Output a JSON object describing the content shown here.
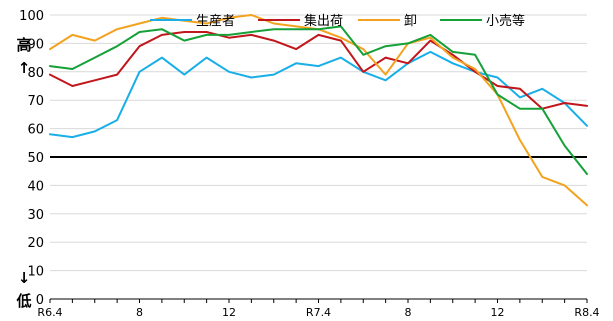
{
  "chart_data": {
    "type": "line",
    "title": "",
    "xlabel": "",
    "ylabel_top": "高",
    "ylabel_top_arrow": "↑",
    "ylabel_bottom_arrow": "↓",
    "ylabel_bottom": "低",
    "ylim": [
      0,
      100
    ],
    "yticks": [
      0,
      10,
      20,
      30,
      40,
      50,
      60,
      70,
      80,
      90,
      100
    ],
    "reference_line": 50,
    "grid": "horizontal",
    "legend_position": "top",
    "x_tick_labels": [
      {
        "index": 0,
        "label": "R6.4"
      },
      {
        "index": 4,
        "label": "8"
      },
      {
        "index": 8,
        "label": "12"
      },
      {
        "index": 12,
        "label": "R7.4"
      },
      {
        "index": 16,
        "label": "8"
      },
      {
        "index": 20,
        "label": "12"
      },
      {
        "index": 24,
        "label": "R8.4"
      }
    ],
    "x_count": 25,
    "series": [
      {
        "name": "生産者",
        "color": "#1aaee8",
        "values": [
          58,
          57,
          59,
          63,
          80,
          85,
          79,
          85,
          80,
          78,
          79,
          83,
          82,
          85,
          80,
          77,
          83,
          87,
          83,
          80,
          78,
          71,
          74,
          69,
          61
        ]
      },
      {
        "name": "集出荷",
        "color": "#c0161c",
        "values": [
          79,
          75,
          77,
          79,
          89,
          93,
          94,
          94,
          92,
          93,
          91,
          88,
          93,
          91,
          80,
          85,
          83,
          91,
          86,
          80,
          75,
          74,
          67,
          69,
          68
        ]
      },
      {
        "name": "卸",
        "color": "#f3a21f",
        "values": [
          88,
          93,
          91,
          95,
          97,
          99,
          98,
          97,
          99,
          100,
          97,
          96,
          95,
          92,
          88,
          79,
          90,
          92,
          85,
          81,
          72,
          56,
          43,
          40,
          33
        ]
      },
      {
        "name": "小売等",
        "color": "#16a038",
        "values": [
          82,
          81,
          85,
          89,
          94,
          95,
          91,
          93,
          93,
          94,
          95,
          95,
          95,
          96,
          86,
          89,
          90,
          93,
          87,
          86,
          72,
          67,
          67,
          54,
          44
        ]
      }
    ]
  }
}
